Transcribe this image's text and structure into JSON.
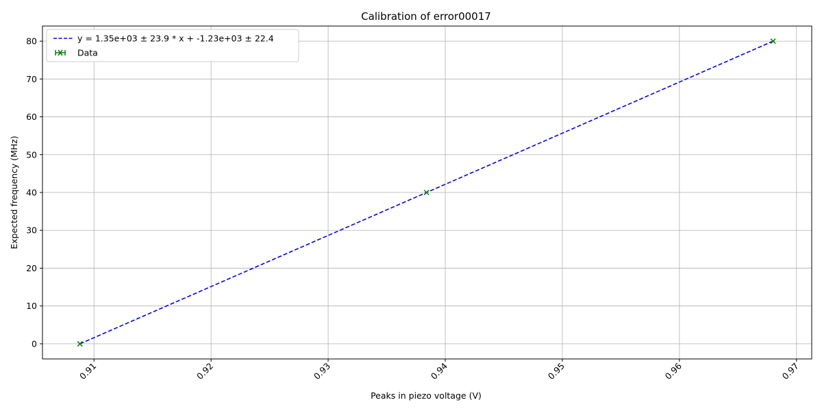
{
  "chart_data": {
    "type": "scatter",
    "title": "Calibration of error00017",
    "xlabel": "Peaks in piezo voltage (V)",
    "ylabel": "Expected frequency (MHz)",
    "xlim": [
      0.9056,
      0.9713
    ],
    "ylim": [
      -4,
      84
    ],
    "xticks": [
      0.91,
      0.92,
      0.93,
      0.94,
      0.95,
      0.96,
      0.97
    ],
    "xtick_labels": [
      "0.91",
      "0.92",
      "0.93",
      "0.94",
      "0.95",
      "0.96",
      "0.97"
    ],
    "yticks": [
      0,
      10,
      20,
      30,
      40,
      50,
      60,
      70,
      80
    ],
    "ytick_labels": [
      "0",
      "10",
      "20",
      "30",
      "40",
      "50",
      "60",
      "70",
      "80"
    ],
    "grid": true,
    "legend_position": "top-left",
    "series": [
      {
        "name": "y = 1.35e+03 ± 23.9 * x + -1.23e+03 ± 22.4",
        "kind": "line",
        "style": "dashed",
        "color": "#0000ff",
        "x": [
          0.9088,
          0.968
        ],
        "y": [
          0,
          80
        ]
      },
      {
        "name": "Data",
        "kind": "scatter",
        "marker": "x",
        "color": "#008000",
        "x": [
          0.9088,
          0.9384,
          0.968
        ],
        "y": [
          0,
          40,
          80
        ]
      }
    ]
  }
}
